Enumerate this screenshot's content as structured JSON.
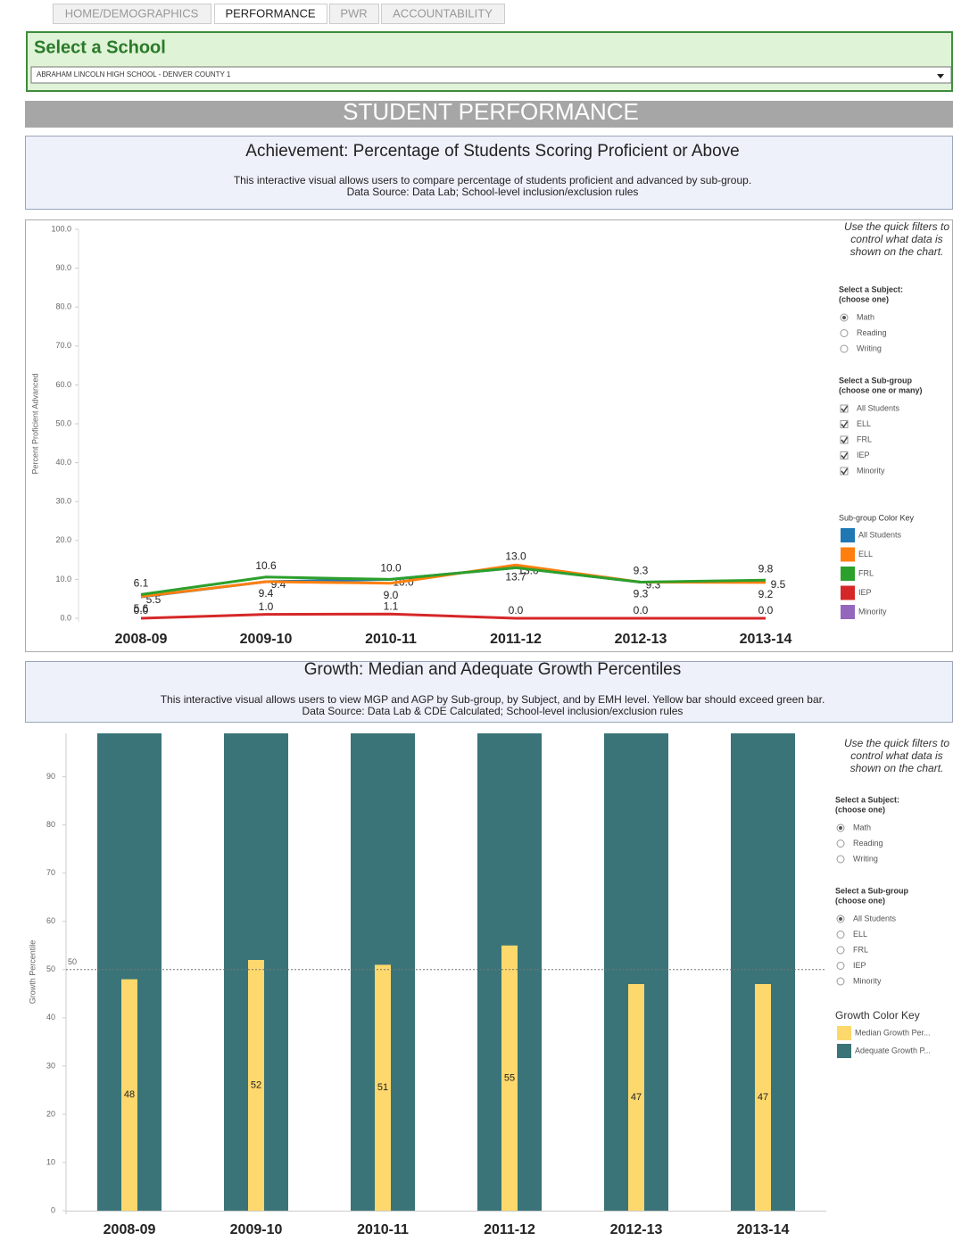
{
  "tabs": [
    "HOME/DEMOGRAPHICS",
    "PERFORMANCE",
    "PWR",
    "ACCOUNTABILITY"
  ],
  "active_tab": [
    false,
    true,
    false,
    false
  ],
  "selector": {
    "title": "Select a School",
    "value": "ABRAHAM LINCOLN HIGH SCHOOL - DENVER COUNTY 1"
  },
  "banner": "STUDENT PERFORMANCE",
  "chart_data": [
    {
      "type": "line",
      "title": "Achievement: Percentage of Students Scoring Proficient or Above",
      "subtitle": [
        "This interactive visual allows users to compare percentage of students proficient and advanced by sub-group.",
        "Data Source: Data Lab; School-level inclusion/exclusion rules"
      ],
      "ylabel": "Percent Proficient Advanced",
      "categories": [
        "2008-09",
        "2009-10",
        "2010-11",
        "2011-12",
        "2012-13",
        "2013-14"
      ],
      "series": [
        {
          "name": "All Students",
          "color": "#1f77b4",
          "values": [
            5.5,
            9.4,
            10.0,
            13.0,
            9.3,
            9.5
          ],
          "value_labels": [
            "5.5",
            "9.4",
            "10.0",
            "13.0",
            "9.3",
            "9.5"
          ]
        },
        {
          "name": "ELL",
          "color": "#ff7f0e",
          "values": [
            5.6,
            9.4,
            9.0,
            13.7,
            9.3,
            9.2
          ],
          "value_labels": [
            "5.6",
            "9.4",
            "9.0",
            "13.7",
            "9.3",
            "9.2"
          ]
        },
        {
          "name": "FRL",
          "color": "#2ca02c",
          "values": [
            6.1,
            10.6,
            10.0,
            13.0,
            9.3,
            9.8
          ],
          "value_labels": [
            "6.1",
            "10.6",
            "10.0",
            "13.0",
            "9.3",
            "9.8"
          ]
        },
        {
          "name": "IEP",
          "color": "#d62728",
          "values": [
            0.0,
            1.0,
            1.1,
            0.0,
            0.0,
            0.0
          ],
          "value_labels": [
            "0.0",
            "1.0",
            "1.1",
            "0.0",
            "0.0",
            "0.0"
          ]
        },
        {
          "name": "Minority",
          "color": "#9467bd",
          "values": [
            null,
            null,
            null,
            null,
            null,
            null
          ]
        }
      ],
      "ylim": [
        0,
        100
      ],
      "yticks": [
        {
          "value": 0,
          "label": "0.0"
        },
        {
          "value": 10,
          "label": "10.0"
        },
        {
          "value": 20,
          "label": "20.0"
        },
        {
          "value": 30,
          "label": "30.0"
        },
        {
          "value": 40,
          "label": "40.0"
        },
        {
          "value": 50,
          "label": "50.0"
        },
        {
          "value": 60,
          "label": "60.0"
        },
        {
          "value": 70,
          "label": "70.0"
        },
        {
          "value": 80,
          "label": "80.0"
        },
        {
          "value": 90,
          "label": "90.0"
        },
        {
          "value": 100,
          "label": "100.0"
        }
      ]
    },
    {
      "type": "bar",
      "title": "Growth: Median and Adequate Growth Percentiles",
      "subtitle": [
        "This interactive visual allows users to view MGP and AGP by Sub-group, by Subject, and by EMH level. Yellow bar should exceed green bar.",
        "Data Source: Data Lab & CDE Calculated; School-level inclusion/exclusion rules"
      ],
      "ylabel": "Growth Percentile",
      "categories": [
        "2008-09",
        "2009-10",
        "2010-11",
        "2011-12",
        "2012-13",
        "2013-14"
      ],
      "series": [
        {
          "name": "Median Growth Per...",
          "color": "#fdd86c",
          "values": [
            48,
            52,
            51,
            55,
            47,
            47
          ]
        },
        {
          "name": "Adequate Growth P...",
          "color": "#3a7478",
          "values": [
            99,
            99,
            99,
            99,
            99,
            99
          ]
        }
      ],
      "reference": 50,
      "ylim": [
        0,
        99
      ],
      "yticks": [
        0,
        10,
        20,
        30,
        40,
        50,
        60,
        70,
        80,
        90
      ]
    }
  ],
  "filters": [
    {
      "note": [
        "Use the quick filters to",
        "control what data is",
        "shown on the chart."
      ],
      "subject_title": [
        "Select a Subject:",
        "(choose one)"
      ],
      "subjects": [
        "Math",
        "Reading",
        "Writing"
      ],
      "subject_checked": [
        true,
        false,
        false
      ],
      "subgroup_title": [
        "Select a Sub-group",
        "(choose one or many)"
      ],
      "subgroups": [
        "All Students",
        "ELL",
        "FRL",
        "IEP",
        "Minority"
      ],
      "subgroup_checked": [
        true,
        true,
        true,
        true,
        true
      ],
      "subgroup_control": "checkbox",
      "key_title": "Sub-group Color Key"
    },
    {
      "note": [
        "Use the quick filters to",
        "control what data is",
        "shown on the chart."
      ],
      "subject_title": [
        "Select a Subject:",
        "(choose one)"
      ],
      "subjects": [
        "Math",
        "Reading",
        "Writing"
      ],
      "subject_checked": [
        true,
        false,
        false
      ],
      "subgroup_title": [
        "Select a Sub-group",
        "(choose one)"
      ],
      "subgroups": [
        "All Students",
        "ELL",
        "FRL",
        "IEP",
        "Minority"
      ],
      "subgroup_checked": [
        true,
        false,
        false,
        false,
        false
      ],
      "subgroup_control": "radio",
      "key_title": "Growth Color Key"
    }
  ]
}
